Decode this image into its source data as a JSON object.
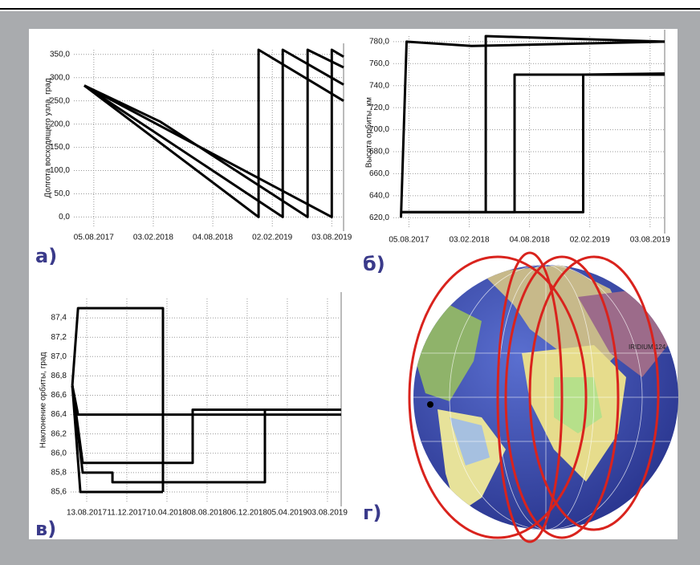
{
  "chart_data": [
    {
      "type": "line",
      "label": "а)",
      "ylabel": "Долгота восходящего узла, град",
      "xlim": [
        "2017-06-05",
        "2019-09-08"
      ],
      "ylim": [
        -20,
        360
      ],
      "grid": true,
      "color": "#000000",
      "xticks": [
        {
          "value": "2017-08-05",
          "label": "05.08.2017"
        },
        {
          "value": "2018-02-03",
          "label": "03.02.2018"
        },
        {
          "value": "2018-08-04",
          "label": "04.08.2018"
        },
        {
          "value": "2019-02-02",
          "label": "02.02.2019"
        },
        {
          "value": "2019-08-03",
          "label": "03.08.2019"
        }
      ],
      "yticks": [
        {
          "value": 0,
          "label": "0,0"
        },
        {
          "value": 50,
          "label": "50,0"
        },
        {
          "value": 100,
          "label": "100,0"
        },
        {
          "value": 150,
          "label": "150,0"
        },
        {
          "value": 200,
          "label": "200,0"
        },
        {
          "value": 250,
          "label": "250,0"
        },
        {
          "value": 300,
          "label": "300,0"
        },
        {
          "value": 350,
          "label": "350,0"
        }
      ],
      "series": [
        {
          "x": [
            "2017-07-07",
            "2018-12-22",
            "2018-12-22",
            "2019-09-08"
          ],
          "values": [
            283,
            0,
            360,
            250
          ]
        },
        {
          "x": [
            "2017-07-07",
            "2019-03-06",
            "2019-03-06",
            "2019-09-08"
          ],
          "values": [
            283,
            0,
            360,
            285
          ]
        },
        {
          "x": [
            "2017-07-07",
            "2018-02-25",
            "2019-05-21",
            "2019-05-21",
            "2019-09-08"
          ],
          "values": [
            283,
            205,
            0,
            360,
            322
          ]
        },
        {
          "x": [
            "2017-07-07",
            "2019-08-03",
            "2019-08-03",
            "2019-09-08"
          ],
          "values": [
            283,
            0,
            360,
            345
          ]
        }
      ]
    },
    {
      "type": "line",
      "label": "б)",
      "ylabel": "Высота орбиты, км",
      "xlim": [
        "2017-06-19",
        "2019-09-16"
      ],
      "ylim": [
        610,
        785
      ],
      "grid": true,
      "color": "#000000",
      "xticks": [
        {
          "value": "2017-08-05",
          "label": "05.08.2017"
        },
        {
          "value": "2018-02-03",
          "label": "03.02.2018"
        },
        {
          "value": "2018-08-04",
          "label": "04.08.2018"
        },
        {
          "value": "2019-02-02",
          "label": "02.02.2019"
        },
        {
          "value": "2019-08-03",
          "label": "03.08.2019"
        }
      ],
      "yticks": [
        {
          "value": 620,
          "label": "620,0"
        },
        {
          "value": 640,
          "label": "640,0"
        },
        {
          "value": 660,
          "label": "660,0"
        },
        {
          "value": 680,
          "label": "680,0"
        },
        {
          "value": 700,
          "label": "700,0"
        },
        {
          "value": 720,
          "label": "720,0"
        },
        {
          "value": 740,
          "label": "740,0"
        },
        {
          "value": 760,
          "label": "760,0"
        },
        {
          "value": 780,
          "label": "780,0"
        }
      ],
      "series": [
        {
          "x": [
            "2017-07-12",
            "2017-07-29",
            "2018-02-10",
            "2019-09-16"
          ],
          "values": [
            620,
            780,
            776,
            780
          ]
        },
        {
          "x": [
            "2017-07-12",
            "2018-03-25",
            "2018-03-25",
            "2019-09-16"
          ],
          "values": [
            625,
            625,
            785,
            780
          ]
        },
        {
          "x": [
            "2017-07-12",
            "2018-06-20",
            "2018-06-20",
            "2019-09-16"
          ],
          "values": [
            625,
            625,
            750,
            750
          ]
        },
        {
          "x": [
            "2017-07-12",
            "2019-01-13",
            "2019-01-13",
            "2019-09-16"
          ],
          "values": [
            625,
            625,
            750,
            751
          ]
        }
      ]
    },
    {
      "type": "line",
      "label": "в)",
      "ylabel": "Наклонение орбиты, град",
      "xlim": [
        "2017-06-26",
        "2019-09-13"
      ],
      "ylim": [
        85.5,
        87.6
      ],
      "grid": true,
      "color": "#000000",
      "xticks": [
        {
          "value": "2017-08-13",
          "label": "13.08.2017"
        },
        {
          "value": "2017-12-11",
          "label": "11.12.2017"
        },
        {
          "value": "2018-04-10",
          "label": "10.04.2018"
        },
        {
          "value": "2018-08-08",
          "label": "08.08.2018"
        },
        {
          "value": "2018-12-06",
          "label": "06.12.2018"
        },
        {
          "value": "2019-04-05",
          "label": "05.04.2019"
        },
        {
          "value": "2019-08-03",
          "label": "03.08.2019"
        }
      ],
      "yticks": [
        {
          "value": 85.6,
          "label": "85,6"
        },
        {
          "value": 85.8,
          "label": "85,8"
        },
        {
          "value": 86,
          "label": "86,0"
        },
        {
          "value": 86.2,
          "label": "86,2"
        },
        {
          "value": 86.4,
          "label": "86,4"
        },
        {
          "value": 86.6,
          "label": "86,6"
        },
        {
          "value": 86.8,
          "label": "86,8"
        },
        {
          "value": 87,
          "label": "87,0"
        },
        {
          "value": 87.2,
          "label": "87,2"
        },
        {
          "value": 87.4,
          "label": "87,4"
        }
      ],
      "series": [
        {
          "x": [
            "2017-07-01",
            "2017-07-18",
            "2019-09-13"
          ],
          "values": [
            86.7,
            86.4,
            86.4
          ]
        },
        {
          "x": [
            "2017-07-01",
            "2017-07-18",
            "2018-03-29",
            "2018-03-29"
          ],
          "values": [
            86.7,
            87.5,
            87.5,
            85.6
          ]
        },
        {
          "x": [
            "2017-07-01",
            "2017-07-25",
            "2018-03-29"
          ],
          "values": [
            86.7,
            85.6,
            85.6
          ]
        },
        {
          "x": [
            "2017-07-01",
            "2017-08-01",
            "2018-06-26",
            "2018-06-26",
            "2019-09-13"
          ],
          "values": [
            86.7,
            85.9,
            85.9,
            86.45,
            86.45
          ]
        },
        {
          "x": [
            "2017-07-01",
            "2017-08-01",
            "2017-10-29",
            "2017-10-29",
            "2019-01-28",
            "2019-01-28",
            "2019-09-13"
          ],
          "values": [
            86.7,
            85.8,
            85.8,
            85.7,
            85.7,
            86.45,
            86.45
          ]
        }
      ]
    }
  ],
  "globe": {
    "label": "г)",
    "satellite": "IRIDIUM 124"
  }
}
